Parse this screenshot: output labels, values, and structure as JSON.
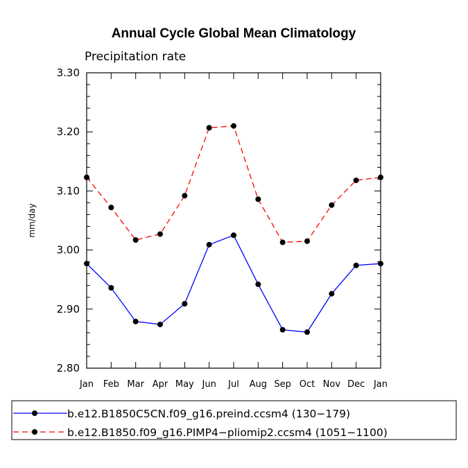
{
  "chart_data": {
    "type": "line",
    "title": "Annual Cycle Global Mean Climatology",
    "subtitle": "Precipitation rate",
    "xlabel": "",
    "ylabel": "mm/day",
    "ylim": [
      2.8,
      3.3
    ],
    "yticks": [
      "2.80",
      "2.90",
      "3.00",
      "3.10",
      "3.20",
      "3.30"
    ],
    "categories": [
      "Jan",
      "Feb",
      "Mar",
      "Apr",
      "May",
      "Jun",
      "Jul",
      "Aug",
      "Sep",
      "Oct",
      "Nov",
      "Dec",
      "Jan"
    ],
    "series": [
      {
        "name": "b.e12.B1850C5CN.f09_g16.preind.ccsm4 (130−179)",
        "color": "#0000ff",
        "dash": "solid",
        "values": [
          2.977,
          2.936,
          2.879,
          2.874,
          2.909,
          3.009,
          3.025,
          2.942,
          2.865,
          2.861,
          2.926,
          2.974,
          2.977
        ]
      },
      {
        "name": "b.e12.B1850.f09_g16.PIMP4−pliomip2.ccsm4 (1051−1100)",
        "color": "#ff0000",
        "dash": "dashed",
        "values": [
          3.123,
          3.072,
          3.017,
          3.027,
          3.092,
          3.207,
          3.21,
          3.086,
          3.013,
          3.015,
          3.076,
          3.118,
          3.123
        ]
      }
    ],
    "grid": false,
    "legend_position": "bottom"
  }
}
